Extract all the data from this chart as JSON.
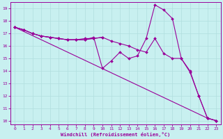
{
  "title": "",
  "xlabel": "Windchill (Refroidissement éolien,°C)",
  "ylabel": "",
  "bg_color": "#c8f0f0",
  "line_color": "#990099",
  "grid_color": "#b0dede",
  "xlim": [
    -0.5,
    23.5
  ],
  "ylim": [
    9.7,
    19.5
  ],
  "yticks": [
    10,
    11,
    12,
    13,
    14,
    15,
    16,
    17,
    18,
    19
  ],
  "xticks": [
    0,
    1,
    2,
    3,
    4,
    5,
    6,
    7,
    8,
    9,
    10,
    11,
    12,
    13,
    14,
    15,
    16,
    17,
    18,
    19,
    20,
    21,
    22,
    23
  ],
  "line1_x": [
    0,
    1,
    2,
    3,
    4,
    5,
    6,
    7,
    8,
    9,
    10,
    11,
    12,
    13,
    14,
    15,
    16,
    17,
    18,
    19,
    20,
    21,
    22,
    23
  ],
  "line1_y": [
    17.5,
    17.3,
    17.0,
    16.8,
    16.7,
    16.6,
    16.5,
    16.5,
    16.5,
    16.7,
    14.2,
    14.8,
    15.5,
    15.0,
    15.2,
    16.6,
    19.3,
    18.9,
    18.2,
    15.0,
    13.9,
    12.0,
    10.2,
    10.0
  ],
  "line2_x": [
    0,
    1,
    2,
    3,
    4,
    5,
    6,
    7,
    8,
    9,
    10,
    11,
    12,
    13,
    14,
    15,
    16,
    17,
    18,
    19,
    20,
    21,
    22,
    23
  ],
  "line2_y": [
    17.5,
    17.3,
    17.0,
    16.8,
    16.7,
    16.6,
    16.5,
    16.5,
    16.5,
    16.6,
    16.7,
    16.4,
    16.2,
    16.0,
    15.7,
    15.5,
    16.6,
    15.4,
    15.0,
    15.0,
    14.0,
    12.0,
    10.2,
    10.0
  ],
  "line3_x": [
    0,
    1,
    2,
    3,
    4,
    5,
    6,
    7,
    8,
    9,
    10
  ],
  "line3_y": [
    17.5,
    17.3,
    17.0,
    16.8,
    16.7,
    16.6,
    16.5,
    16.5,
    16.6,
    16.6,
    16.7
  ],
  "line4_x": [
    0,
    22,
    23
  ],
  "line4_y": [
    17.5,
    10.2,
    10.0
  ]
}
